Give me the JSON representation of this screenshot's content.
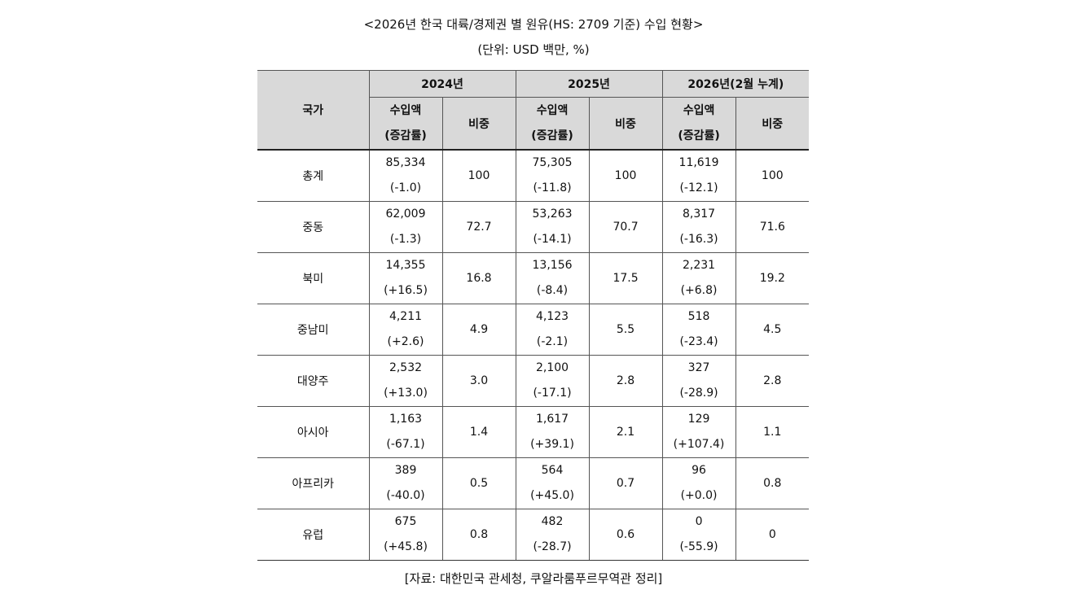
{
  "title": "<2026년 한국 대륙/경제권 별 원유(HS: 2709 기준) 수입 현황>",
  "unit": "(단위: USD 백만, %)",
  "source": "[자료: 대한민국 관세청, 쿠알라룸푸르무역관 정리]",
  "header": {
    "country": "국가",
    "years": [
      "2024년",
      "2025년",
      "2026년(2월 누계)"
    ],
    "amount_line1": "수입액",
    "amount_line2": "(증감률)",
    "share": "비중"
  },
  "rows": [
    {
      "country": "총계",
      "cells": [
        {
          "amount": "85,334",
          "change": "(-1.0)",
          "share": "100"
        },
        {
          "amount": "75,305",
          "change": "(-11.8)",
          "share": "100"
        },
        {
          "amount": "11,619",
          "change": "(-12.1)",
          "share": "100"
        }
      ]
    },
    {
      "country": "중동",
      "cells": [
        {
          "amount": "62,009",
          "change": "(-1.3)",
          "share": "72.7"
        },
        {
          "amount": "53,263",
          "change": "(-14.1)",
          "share": "70.7"
        },
        {
          "amount": "8,317",
          "change": "(-16.3)",
          "share": "71.6"
        }
      ]
    },
    {
      "country": "북미",
      "cells": [
        {
          "amount": "14,355",
          "change": "(+16.5)",
          "share": "16.8"
        },
        {
          "amount": "13,156",
          "change": "(-8.4)",
          "share": "17.5"
        },
        {
          "amount": "2,231",
          "change": "(+6.8)",
          "share": "19.2"
        }
      ]
    },
    {
      "country": "중남미",
      "cells": [
        {
          "amount": "4,211",
          "change": "(+2.6)",
          "share": "4.9"
        },
        {
          "amount": "4,123",
          "change": "(-2.1)",
          "share": "5.5"
        },
        {
          "amount": "518",
          "change": "(-23.4)",
          "share": "4.5"
        }
      ]
    },
    {
      "country": "대양주",
      "cells": [
        {
          "amount": "2,532",
          "change": "(+13.0)",
          "share": "3.0"
        },
        {
          "amount": "2,100",
          "change": "(-17.1)",
          "share": "2.8"
        },
        {
          "amount": "327",
          "change": "(-28.9)",
          "share": "2.8"
        }
      ]
    },
    {
      "country": "아시아",
      "cells": [
        {
          "amount": "1,163",
          "change": "(-67.1)",
          "share": "1.4"
        },
        {
          "amount": "1,617",
          "change": "(+39.1)",
          "share": "2.1"
        },
        {
          "amount": "129",
          "change": "(+107.4)",
          "share": "1.1"
        }
      ]
    },
    {
      "country": "아프리카",
      "cells": [
        {
          "amount": "389",
          "change": "(-40.0)",
          "share": "0.5"
        },
        {
          "amount": "564",
          "change": "(+45.0)",
          "share": "0.7"
        },
        {
          "amount": "96",
          "change": "(+0.0)",
          "share": "0.8"
        }
      ]
    },
    {
      "country": "유럽",
      "cells": [
        {
          "amount": "675",
          "change": "(+45.8)",
          "share": "0.8"
        },
        {
          "amount": "482",
          "change": "(-28.7)",
          "share": "0.6"
        },
        {
          "amount": "0",
          "change": "(-55.9)",
          "share": "0"
        }
      ]
    }
  ]
}
